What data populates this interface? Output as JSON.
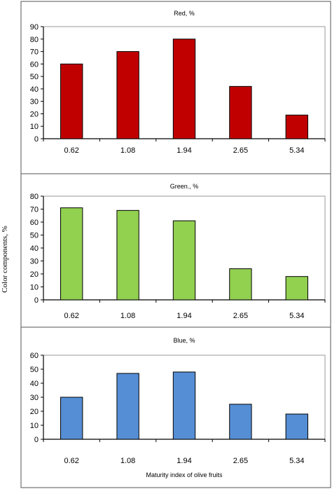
{
  "y_axis_title": "Color components, %",
  "x_axis_title": "Maturity index of olive fruits",
  "chart_data": [
    {
      "type": "bar",
      "title": "Red, %",
      "categories": [
        "0.62",
        "1.08",
        "1.94",
        "2.65",
        "5.34"
      ],
      "values": [
        60,
        70,
        80,
        42,
        19
      ],
      "ylim": [
        0,
        90
      ],
      "yticks": [
        0,
        10,
        20,
        30,
        40,
        50,
        60,
        70,
        80,
        90
      ],
      "color": "#c00000",
      "xlabel": "",
      "grid": false
    },
    {
      "type": "bar",
      "title": "Green., %",
      "categories": [
        "0.62",
        "1.08",
        "1.94",
        "2.65",
        "5.34"
      ],
      "values": [
        71,
        69,
        61,
        24,
        18
      ],
      "ylim": [
        0,
        80
      ],
      "yticks": [
        0,
        10,
        20,
        30,
        40,
        50,
        60,
        70,
        80
      ],
      "color": "#92d050",
      "xlabel": "",
      "grid": false
    },
    {
      "type": "bar",
      "title": "Blue, %",
      "categories": [
        "0.62",
        "1.08",
        "1.94",
        "2.65",
        "5.34"
      ],
      "values": [
        30,
        47,
        48,
        25,
        18
      ],
      "ylim": [
        0,
        60
      ],
      "yticks": [
        0,
        10,
        20,
        30,
        40,
        50,
        60
      ],
      "color": "#558ed5",
      "xlabel": "Maturity index of olive fruits",
      "grid": false
    }
  ]
}
